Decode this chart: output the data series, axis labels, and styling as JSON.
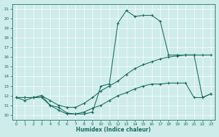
{
  "xlabel": "Humidex (Indice chaleur)",
  "xlim": [
    -0.5,
    23.5
  ],
  "ylim": [
    9.5,
    21.5
  ],
  "yticks": [
    10,
    11,
    12,
    13,
    14,
    15,
    16,
    17,
    18,
    19,
    20,
    21
  ],
  "xticks": [
    0,
    1,
    2,
    3,
    4,
    5,
    6,
    7,
    8,
    9,
    10,
    11,
    12,
    13,
    14,
    15,
    16,
    17,
    18,
    19,
    20,
    21,
    22,
    23
  ],
  "bg_color": "#ceecea",
  "line_color": "#1a6b5e",
  "line1_x": [
    0,
    1,
    2,
    3,
    4,
    5,
    6,
    7,
    8,
    9,
    10,
    11,
    12,
    13,
    14,
    15,
    16,
    17,
    18,
    19,
    20,
    21,
    22,
    23
  ],
  "line1_y": [
    11.8,
    11.8,
    11.8,
    12.0,
    11.0,
    10.8,
    10.2,
    10.1,
    10.1,
    10.3,
    13.0,
    13.2,
    19.5,
    20.8,
    20.2,
    20.3,
    20.3,
    19.7,
    16.2,
    16.2,
    16.2,
    16.2,
    16.2,
    16.2
  ],
  "line2_x": [
    0,
    1,
    2,
    3,
    4,
    5,
    6,
    7,
    8,
    9,
    10,
    11,
    12,
    13,
    14,
    15,
    16,
    17,
    18,
    19,
    20,
    21,
    22,
    23
  ],
  "line2_y": [
    11.8,
    11.8,
    11.8,
    12.0,
    11.5,
    11.0,
    10.8,
    10.8,
    11.2,
    11.8,
    12.5,
    13.0,
    13.5,
    14.2,
    14.8,
    15.2,
    15.5,
    15.8,
    16.0,
    16.1,
    16.2,
    16.2,
    11.8,
    12.2
  ],
  "line3_x": [
    0,
    1,
    2,
    3,
    4,
    5,
    6,
    7,
    8,
    9,
    10,
    11,
    12,
    13,
    14,
    15,
    16,
    17,
    18,
    19,
    20,
    21,
    22,
    23
  ],
  "line3_y": [
    11.8,
    11.5,
    11.8,
    11.8,
    11.0,
    10.5,
    10.1,
    10.1,
    10.3,
    10.7,
    11.0,
    11.5,
    12.0,
    12.3,
    12.7,
    13.0,
    13.2,
    13.2,
    13.3,
    13.3,
    13.3,
    11.8,
    11.8,
    12.2
  ]
}
